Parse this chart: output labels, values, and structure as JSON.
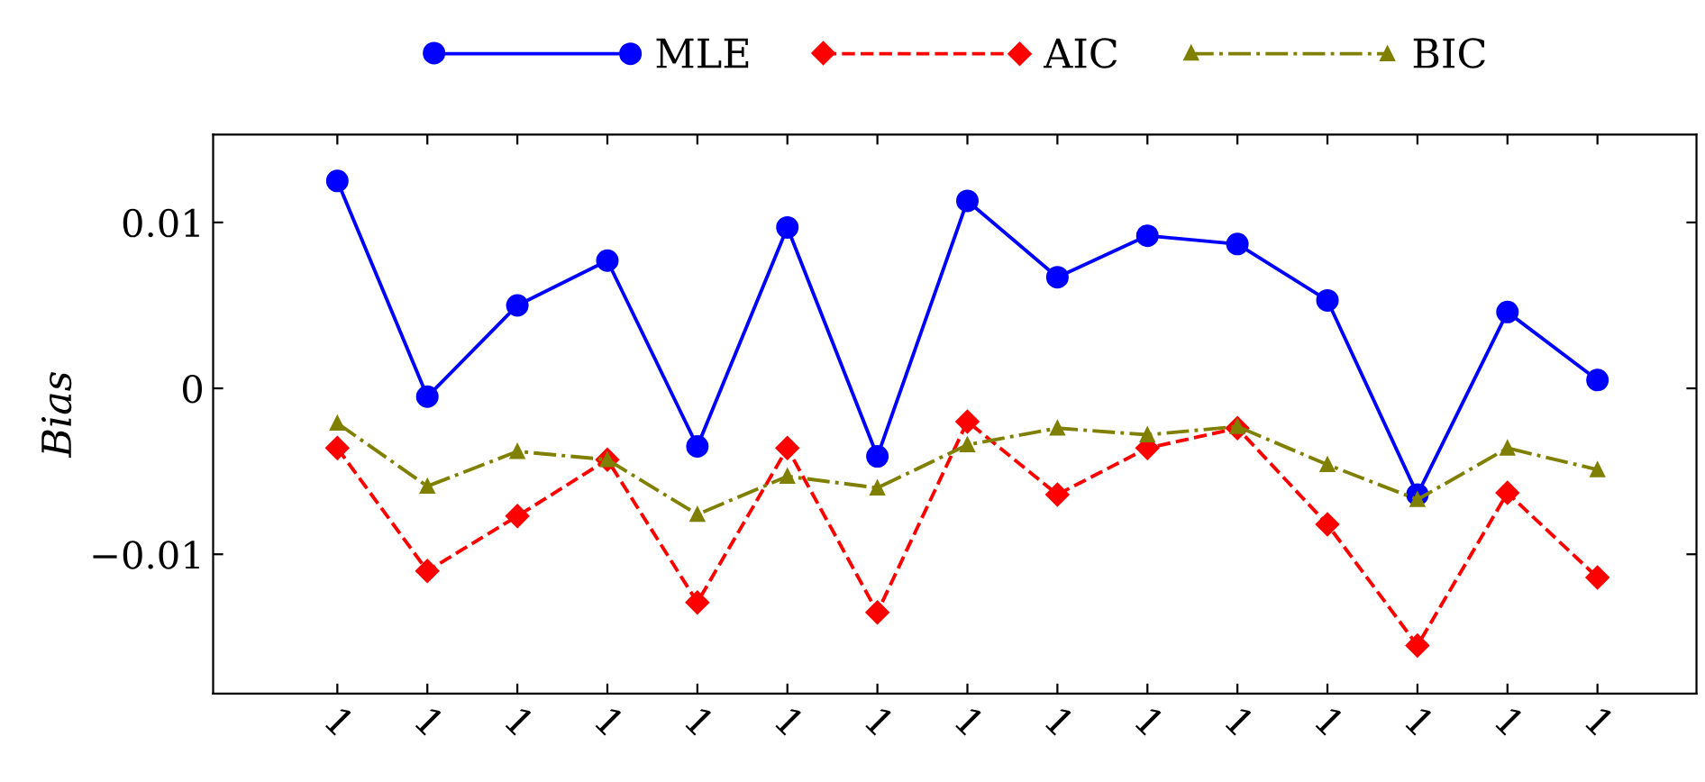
{
  "chart_data": {
    "type": "line",
    "ylabel": "Bias",
    "categories": [
      "1",
      "1",
      "1",
      "1",
      "1",
      "1",
      "1",
      "1",
      "1",
      "1",
      "1",
      "1",
      "1",
      "1",
      "1"
    ],
    "series": [
      {
        "name": "MLE",
        "color": "#0000ff",
        "marker": "circle",
        "line_style": "solid",
        "values": [
          0.0125,
          -0.0005,
          0.005,
          0.0077,
          -0.0035,
          0.0097,
          -0.0041,
          0.0113,
          0.0067,
          0.0092,
          0.0087,
          0.0053,
          -0.0064,
          0.0046,
          0.0005
        ]
      },
      {
        "name": "AIC",
        "color": "#ff0000",
        "marker": "diamond",
        "line_style": "dashed",
        "values": [
          -0.0036,
          -0.011,
          -0.0077,
          -0.0043,
          -0.0129,
          -0.0036,
          -0.0135,
          -0.002,
          -0.0064,
          -0.0036,
          -0.0024,
          -0.0082,
          -0.0155,
          -0.0063,
          -0.0114
        ]
      },
      {
        "name": "BIC",
        "color": "#808000",
        "marker": "triangle",
        "line_style": "dashdot",
        "values": [
          -0.0021,
          -0.0059,
          -0.0038,
          -0.0043,
          -0.0076,
          -0.0053,
          -0.006,
          -0.0034,
          -0.0024,
          -0.0028,
          -0.0023,
          -0.0046,
          -0.0067,
          -0.0036,
          -0.0049
        ]
      }
    ],
    "ylim": [
      -0.0184,
      0.0153
    ],
    "yticks": [
      {
        "value": 0.01,
        "label": "0.01"
      },
      0,
      {
        "value": -0.01,
        "label": "−0.01"
      }
    ],
    "grid": false,
    "legend": "top"
  }
}
